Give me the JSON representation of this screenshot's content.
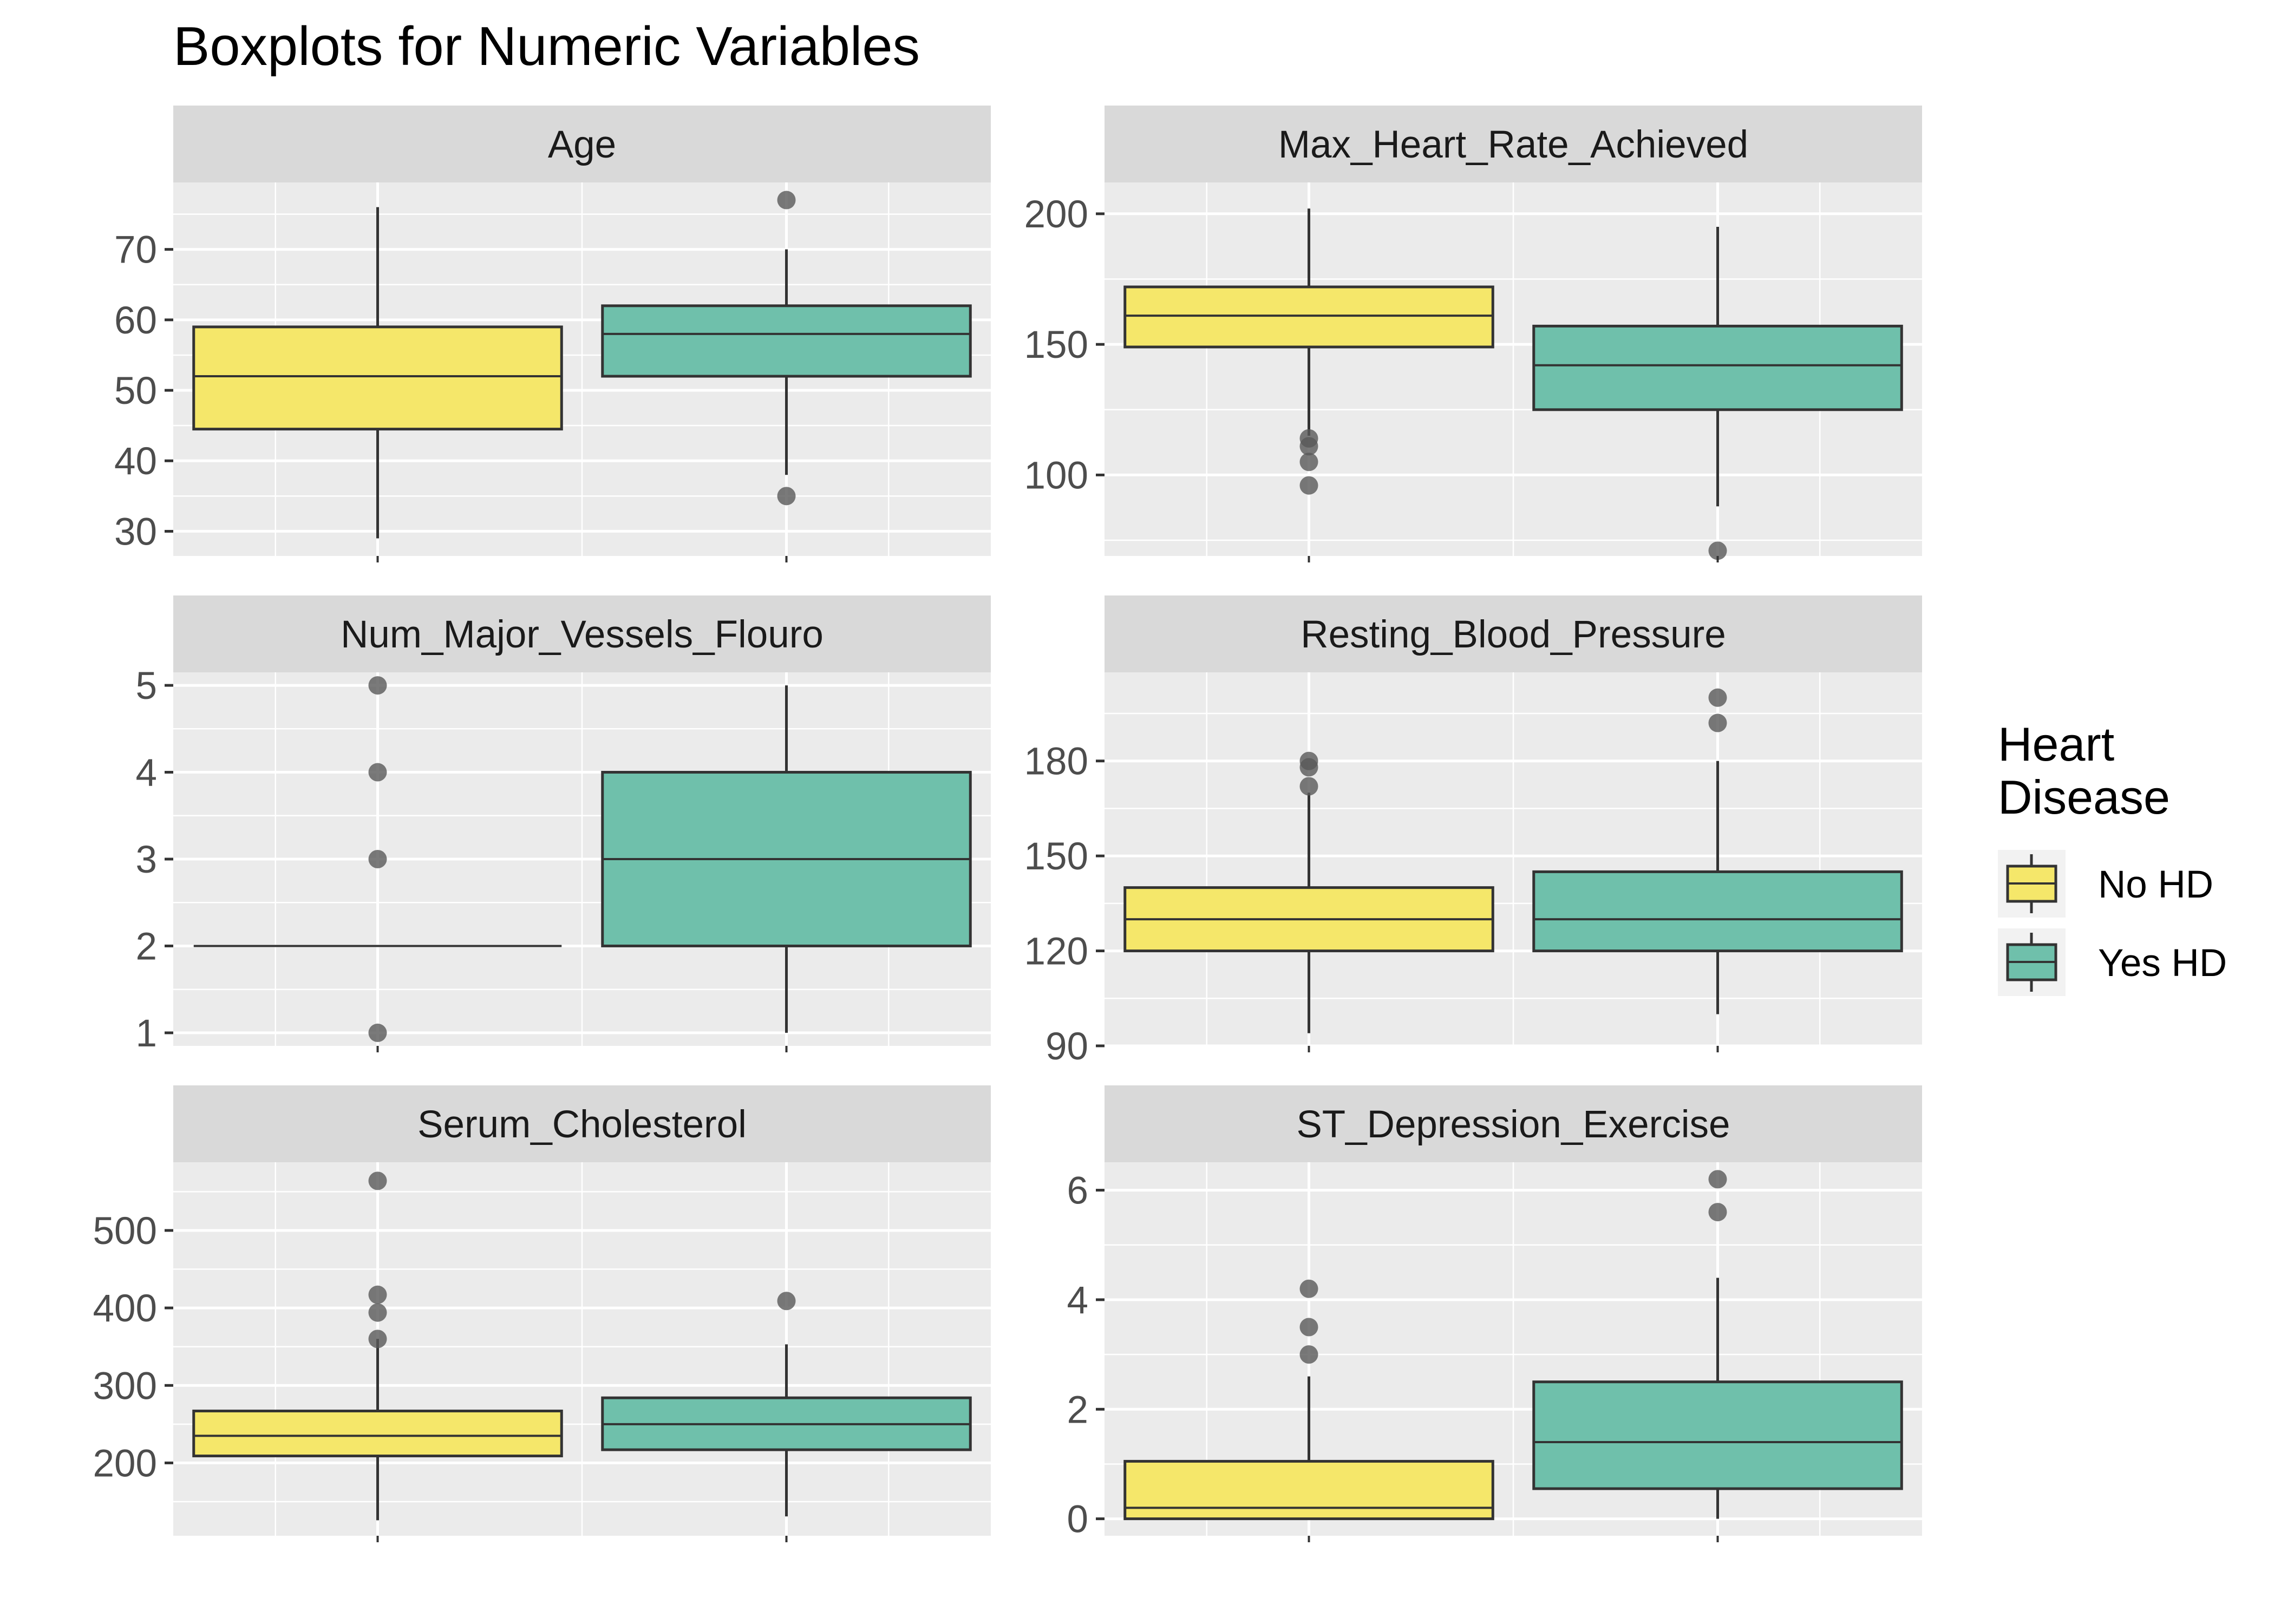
{
  "chart_data": {
    "type": "boxplot",
    "title": "Boxplots for Numeric Variables",
    "grid": true,
    "legend": {
      "title_lines": [
        "Heart",
        "Disease"
      ],
      "placement": "right",
      "entries": [
        {
          "label": "No HD",
          "color": "#f5e76a"
        },
        {
          "label": "Yes HD",
          "color": "#6fc0ab"
        }
      ]
    },
    "colors": {
      "no_hd": "#f5e76a",
      "yes_hd": "#6fc0ab",
      "panel_bg": "#ebebeb",
      "strip_bg": "#d9d9d9",
      "grid": "#ffffff",
      "outline": "#333333",
      "outlier": "#595959"
    },
    "groups": [
      "No HD",
      "Yes HD"
    ],
    "panels": [
      {
        "name": "Age",
        "ylim": [
          26.5,
          79.5
        ],
        "ticks": [
          30,
          40,
          50,
          60,
          70
        ],
        "boxes": [
          {
            "group": "No HD",
            "whisker_low": 29,
            "q1": 44.5,
            "median": 52,
            "q3": 59,
            "whisker_high": 76,
            "outliers": []
          },
          {
            "group": "Yes HD",
            "whisker_low": 38,
            "q1": 52,
            "median": 58,
            "q3": 62,
            "whisker_high": 70,
            "outliers": [
              77,
              35
            ]
          }
        ]
      },
      {
        "name": "Max_Heart_Rate_Achieved",
        "ylim": [
          69,
          212
        ],
        "ticks": [
          100,
          150,
          200
        ],
        "boxes": [
          {
            "group": "No HD",
            "whisker_low": 115,
            "q1": 149,
            "median": 161,
            "q3": 172,
            "whisker_high": 202,
            "outliers": [
              114,
              111,
              105,
              96
            ]
          },
          {
            "group": "Yes HD",
            "whisker_low": 88,
            "q1": 125,
            "median": 142,
            "q3": 157,
            "whisker_high": 195,
            "outliers": [
              71
            ]
          }
        ]
      },
      {
        "name": "Num_Major_Vessels_Flouro",
        "ylim": [
          0.85,
          5.15
        ],
        "ticks": [
          1,
          2,
          3,
          4,
          5
        ],
        "boxes": [
          {
            "group": "No HD",
            "whisker_low": 2,
            "q1": 2,
            "median": 2,
            "q3": 2,
            "whisker_high": 2,
            "outliers": [
              5,
              4,
              3,
              1
            ]
          },
          {
            "group": "Yes HD",
            "whisker_low": 1,
            "q1": 2,
            "median": 3,
            "q3": 4,
            "whisker_high": 5,
            "outliers": []
          }
        ]
      },
      {
        "name": "Resting_Blood_Pressure",
        "ylim": [
          90,
          208
        ],
        "ticks": [
          90,
          120,
          150,
          180
        ],
        "boxes": [
          {
            "group": "No HD",
            "whisker_low": 94,
            "q1": 120,
            "median": 130,
            "q3": 140,
            "whisker_high": 170,
            "outliers": [
              180,
              178,
              172
            ]
          },
          {
            "group": "Yes HD",
            "whisker_low": 100,
            "q1": 120,
            "median": 130,
            "q3": 145,
            "whisker_high": 180,
            "outliers": [
              200,
              192
            ]
          }
        ]
      },
      {
        "name": "Serum_Cholesterol",
        "ylim": [
          106,
          588
        ],
        "ticks": [
          200,
          300,
          400,
          500
        ],
        "boxes": [
          {
            "group": "No HD",
            "whisker_low": 126,
            "q1": 209,
            "median": 235,
            "q3": 267,
            "whisker_high": 360,
            "outliers": [
              564,
              417,
              394,
              360
            ]
          },
          {
            "group": "Yes HD",
            "whisker_low": 131,
            "q1": 217,
            "median": 250,
            "q3": 284,
            "whisker_high": 353,
            "outliers": [
              409
            ]
          }
        ]
      },
      {
        "name": "ST_Depression_Exercise",
        "ylim": [
          -0.31,
          6.51
        ],
        "ticks": [
          0,
          2,
          4,
          6
        ],
        "boxes": [
          {
            "group": "No HD",
            "whisker_low": 0,
            "q1": 0,
            "median": 0.2,
            "q3": 1.05,
            "whisker_high": 2.6,
            "outliers": [
              4.2,
              3.5,
              3.0
            ]
          },
          {
            "group": "Yes HD",
            "whisker_low": 0,
            "q1": 0.55,
            "median": 1.4,
            "q3": 2.5,
            "whisker_high": 4.4,
            "outliers": [
              6.2,
              5.6
            ]
          }
        ]
      }
    ]
  }
}
